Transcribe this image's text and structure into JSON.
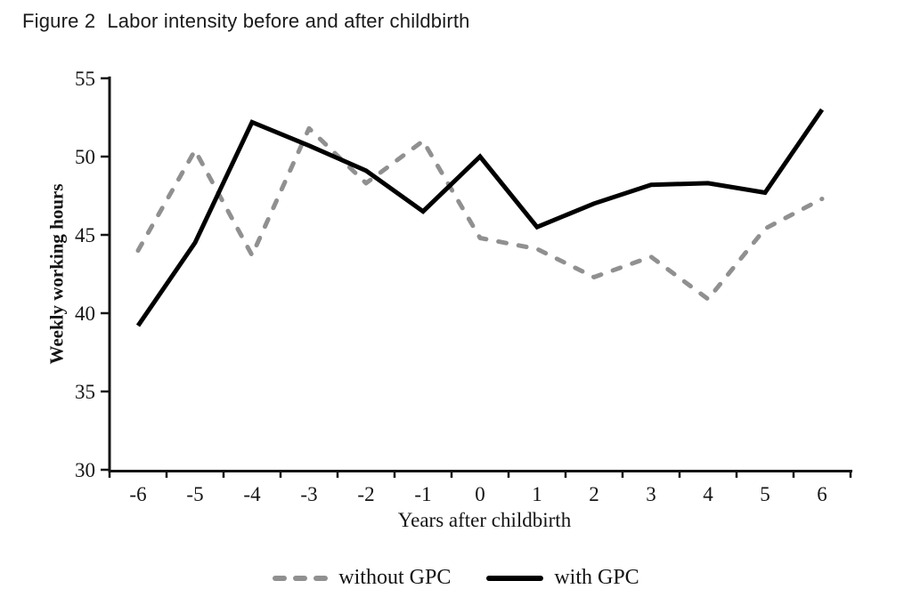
{
  "title": {
    "prefix": "Figure 2",
    "text": "Labor intensity before and after childbirth"
  },
  "chart_data": {
    "type": "line",
    "categories": [
      -6,
      -5,
      -4,
      -3,
      -2,
      -1,
      0,
      1,
      2,
      3,
      4,
      5,
      6
    ],
    "series": [
      {
        "name": "without GPC",
        "style": "dashed",
        "color": "#909090",
        "values": [
          44.0,
          50.4,
          43.7,
          51.8,
          48.3,
          51.0,
          44.8,
          44.1,
          42.3,
          43.6,
          40.9,
          45.4,
          47.3
        ]
      },
      {
        "name": "with GPC",
        "style": "solid",
        "color": "#000000",
        "values": [
          39.2,
          44.5,
          52.2,
          50.7,
          49.1,
          46.5,
          50.0,
          45.5,
          47.0,
          48.2,
          48.3,
          47.7,
          53.0
        ]
      }
    ],
    "xlabel": "Years after childbirth",
    "ylabel": "Weekly working hours",
    "ylim": [
      30,
      55
    ],
    "y_ticks": [
      30,
      35,
      40,
      45,
      50,
      55
    ],
    "x_tick_labels": [
      "-6",
      "-5",
      "-4",
      "-3",
      "-2",
      "-1",
      "0",
      "1",
      "2",
      "3",
      "4",
      "5",
      "6"
    ],
    "grid": false,
    "legend_position": "bottom",
    "axis_color": "#141414"
  }
}
